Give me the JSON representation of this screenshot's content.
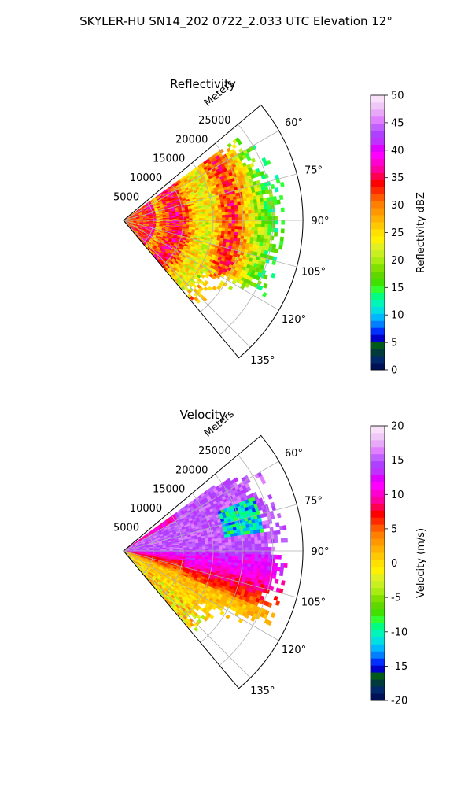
{
  "figure": {
    "title": "SKYLER-HU  SN14_202  0722_2.033 UTC Elevation 12°"
  },
  "chart_data": [
    {
      "type": "heatmap",
      "title": "Reflectivity",
      "projection": "polar sector",
      "range_label": "Meters",
      "range_ticks": [
        "5000",
        "10000",
        "15000",
        "20000",
        "25000"
      ],
      "range_lim": [
        0,
        30000
      ],
      "azimuth_ticks": [
        "60°",
        "75°",
        "90°",
        "105°",
        "120°",
        "135°"
      ],
      "azimuth_lim": [
        50,
        140
      ],
      "grid": true,
      "colorbar": {
        "label": "Reflectivity dBZ",
        "min": 0,
        "max": 50,
        "ticks": [
          "0",
          "5",
          "10",
          "15",
          "20",
          "25",
          "30",
          "35",
          "40",
          "45",
          "50"
        ],
        "colors": [
          "#001255",
          "#00286a",
          "#003a3a",
          "#005a1a",
          "#0000c8",
          "#0030ff",
          "#0080ff",
          "#00b8ff",
          "#00e0e0",
          "#00f5b8",
          "#00ff80",
          "#30ff30",
          "#40e000",
          "#60d800",
          "#80e000",
          "#a8ec10",
          "#c8f020",
          "#e0f020",
          "#fff000",
          "#ffe000",
          "#ffc800",
          "#ffb000",
          "#ff9800",
          "#ff8000",
          "#ff5a00",
          "#ff2a00",
          "#ff0000",
          "#ff0050",
          "#ff00a0",
          "#ff00d0",
          "#ff00ff",
          "#e000ff",
          "#c030ff",
          "#b040ff",
          "#c060ff",
          "#e080ff",
          "#e8a8f8",
          "#f0c8f8",
          "#f8e0f8"
        ]
      },
      "field_summary": "Strong echoes 35–40 dBZ in a band at roughly 7–10 km and near 17–19 km; weaker 15–25 dBZ echoes at the outer edge (~20–26 km)."
    },
    {
      "type": "heatmap",
      "title": "Velocity",
      "projection": "polar sector",
      "range_label": "Meters",
      "range_ticks": [
        "5000",
        "10000",
        "15000",
        "20000",
        "25000"
      ],
      "range_lim": [
        0,
        30000
      ],
      "azimuth_ticks": [
        "60°",
        "75°",
        "90°",
        "105°",
        "120°",
        "135°"
      ],
      "azimuth_lim": [
        50,
        140
      ],
      "grid": true,
      "colorbar": {
        "label": "Velocity (m/s)",
        "min": -20,
        "max": 20,
        "ticks": [
          "-20",
          "-15",
          "-10",
          "-5",
          "0",
          "5",
          "10",
          "15",
          "20"
        ],
        "colors": [
          "#001255",
          "#00286a",
          "#003a3a",
          "#005a1a",
          "#0000c8",
          "#0030ff",
          "#0080ff",
          "#00b8ff",
          "#00e0e0",
          "#00f5b8",
          "#00ff80",
          "#30ff30",
          "#40e000",
          "#60d800",
          "#80e000",
          "#a8ec10",
          "#c8f020",
          "#e0f020",
          "#fff000",
          "#ffe000",
          "#ffc800",
          "#ffb000",
          "#ff9800",
          "#ff8000",
          "#ff5a00",
          "#ff2a00",
          "#ff0000",
          "#ff0050",
          "#ff00a0",
          "#ff00d0",
          "#ff00ff",
          "#e000ff",
          "#c030ff",
          "#b040ff",
          "#c060ff",
          "#e080ff",
          "#e8a8f8",
          "#f0c8f8",
          "#f8e0f8"
        ]
      },
      "field_summary": "Outbound 12–15 m/s (magenta/purple) in the northern half; 5–10 m/s (red/orange) along ~95–110°; 0–3 m/s (yellow) in the southern sector; an inbound pocket of about −10 to −13 m/s (cyan/blue) near 70–80° at 18–23 km."
    }
  ]
}
